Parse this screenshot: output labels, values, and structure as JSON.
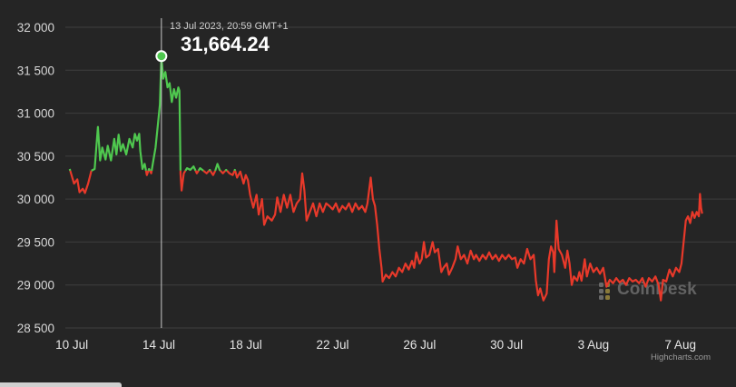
{
  "chart_data": {
    "type": "line",
    "title": "",
    "xlabel": "",
    "ylabel": "",
    "ylim": [
      28500,
      32000
    ],
    "y_ticks": [
      "32 000",
      "31 500",
      "31 000",
      "30 500",
      "30 000",
      "29 500",
      "29 000",
      "28 500"
    ],
    "y_tick_values": [
      32000,
      31500,
      31000,
      30500,
      30000,
      29500,
      29000,
      28500
    ],
    "x_ticks": [
      "10 Jul",
      "14 Jul",
      "18 Jul",
      "22 Jul",
      "26 Jul",
      "30 Jul",
      "3 Aug",
      "7 Aug"
    ],
    "x_tick_days": [
      0,
      4,
      8,
      12,
      16,
      20,
      24,
      28
    ],
    "x_range_days": [
      -0.3,
      30.1
    ],
    "grid": true,
    "colors": {
      "above": "#4fc84f",
      "below": "#e8392a",
      "background": "#252525"
    },
    "baseline": 30330,
    "series": [
      {
        "values": [
          [
            -0.1,
            30350
          ],
          [
            0.1,
            30180
          ],
          [
            0.25,
            30230
          ],
          [
            0.35,
            30080
          ],
          [
            0.5,
            30120
          ],
          [
            0.6,
            30070
          ],
          [
            0.75,
            30180
          ],
          [
            0.9,
            30330
          ],
          [
            1.05,
            30350
          ],
          [
            1.2,
            30840
          ],
          [
            1.3,
            30450
          ],
          [
            1.4,
            30600
          ],
          [
            1.55,
            30460
          ],
          [
            1.65,
            30620
          ],
          [
            1.8,
            30450
          ],
          [
            1.95,
            30700
          ],
          [
            2.05,
            30520
          ],
          [
            2.15,
            30750
          ],
          [
            2.25,
            30560
          ],
          [
            2.35,
            30640
          ],
          [
            2.5,
            30520
          ],
          [
            2.65,
            30700
          ],
          [
            2.8,
            30600
          ],
          [
            2.9,
            30760
          ],
          [
            3.0,
            30680
          ],
          [
            3.1,
            30760
          ],
          [
            3.15,
            30560
          ],
          [
            3.25,
            30350
          ],
          [
            3.35,
            30410
          ],
          [
            3.45,
            30280
          ],
          [
            3.55,
            30350
          ],
          [
            3.65,
            30300
          ],
          [
            3.75,
            30450
          ],
          [
            3.85,
            30600
          ],
          [
            3.95,
            30850
          ],
          [
            4.05,
            31100
          ],
          [
            4.12,
            31664
          ],
          [
            4.2,
            31400
          ],
          [
            4.3,
            31480
          ],
          [
            4.4,
            31300
          ],
          [
            4.5,
            31350
          ],
          [
            4.6,
            31130
          ],
          [
            4.7,
            31280
          ],
          [
            4.8,
            31180
          ],
          [
            4.9,
            31300
          ],
          [
            4.95,
            31260
          ],
          [
            5.0,
            30300
          ],
          [
            5.05,
            30100
          ],
          [
            5.15,
            30300
          ],
          [
            5.3,
            30360
          ],
          [
            5.45,
            30340
          ],
          [
            5.6,
            30380
          ],
          [
            5.75,
            30300
          ],
          [
            5.9,
            30360
          ],
          [
            6.05,
            30330
          ],
          [
            6.2,
            30300
          ],
          [
            6.35,
            30340
          ],
          [
            6.5,
            30280
          ],
          [
            6.6,
            30330
          ],
          [
            6.7,
            30410
          ],
          [
            6.8,
            30340
          ],
          [
            6.95,
            30300
          ],
          [
            7.1,
            30340
          ],
          [
            7.25,
            30300
          ],
          [
            7.4,
            30280
          ],
          [
            7.5,
            30340
          ],
          [
            7.6,
            30250
          ],
          [
            7.75,
            30320
          ],
          [
            7.9,
            30180
          ],
          [
            8.0,
            30280
          ],
          [
            8.1,
            30220
          ],
          [
            8.2,
            30050
          ],
          [
            8.35,
            29900
          ],
          [
            8.5,
            30050
          ],
          [
            8.6,
            29820
          ],
          [
            8.75,
            30000
          ],
          [
            8.85,
            29700
          ],
          [
            9.0,
            29800
          ],
          [
            9.2,
            29750
          ],
          [
            9.35,
            29820
          ],
          [
            9.45,
            30020
          ],
          [
            9.6,
            29850
          ],
          [
            9.75,
            30050
          ],
          [
            9.9,
            29900
          ],
          [
            10.05,
            30050
          ],
          [
            10.2,
            29850
          ],
          [
            10.35,
            29950
          ],
          [
            10.5,
            30000
          ],
          [
            10.6,
            30300
          ],
          [
            10.7,
            30100
          ],
          [
            10.8,
            29750
          ],
          [
            10.95,
            29850
          ],
          [
            11.1,
            29950
          ],
          [
            11.25,
            29800
          ],
          [
            11.4,
            29950
          ],
          [
            11.55,
            29850
          ],
          [
            11.7,
            29950
          ],
          [
            11.85,
            29920
          ],
          [
            12.0,
            29880
          ],
          [
            12.15,
            29950
          ],
          [
            12.3,
            29850
          ],
          [
            12.45,
            29920
          ],
          [
            12.6,
            29880
          ],
          [
            12.75,
            29950
          ],
          [
            12.9,
            29850
          ],
          [
            13.05,
            29950
          ],
          [
            13.2,
            29880
          ],
          [
            13.35,
            29920
          ],
          [
            13.5,
            29850
          ],
          [
            13.6,
            29950
          ],
          [
            13.75,
            30250
          ],
          [
            13.85,
            30000
          ],
          [
            13.95,
            29920
          ],
          [
            14.05,
            29700
          ],
          [
            14.15,
            29420
          ],
          [
            14.25,
            29200
          ],
          [
            14.3,
            29040
          ],
          [
            14.45,
            29120
          ],
          [
            14.6,
            29080
          ],
          [
            14.75,
            29150
          ],
          [
            14.9,
            29100
          ],
          [
            15.05,
            29200
          ],
          [
            15.2,
            29150
          ],
          [
            15.35,
            29250
          ],
          [
            15.5,
            29180
          ],
          [
            15.65,
            29280
          ],
          [
            15.75,
            29200
          ],
          [
            15.85,
            29380
          ],
          [
            16.0,
            29250
          ],
          [
            16.1,
            29300
          ],
          [
            16.2,
            29500
          ],
          [
            16.3,
            29320
          ],
          [
            16.45,
            29350
          ],
          [
            16.6,
            29500
          ],
          [
            16.7,
            29380
          ],
          [
            16.85,
            29420
          ],
          [
            17.0,
            29150
          ],
          [
            17.1,
            29200
          ],
          [
            17.25,
            29250
          ],
          [
            17.35,
            29120
          ],
          [
            17.5,
            29200
          ],
          [
            17.65,
            29300
          ],
          [
            17.75,
            29450
          ],
          [
            17.9,
            29300
          ],
          [
            18.05,
            29350
          ],
          [
            18.2,
            29250
          ],
          [
            18.35,
            29400
          ],
          [
            18.5,
            29300
          ],
          [
            18.6,
            29350
          ],
          [
            18.75,
            29280
          ],
          [
            18.9,
            29350
          ],
          [
            19.05,
            29300
          ],
          [
            19.2,
            29380
          ],
          [
            19.35,
            29300
          ],
          [
            19.5,
            29350
          ],
          [
            19.65,
            29280
          ],
          [
            19.8,
            29350
          ],
          [
            19.95,
            29300
          ],
          [
            20.1,
            29350
          ],
          [
            20.25,
            29300
          ],
          [
            20.4,
            29320
          ],
          [
            20.5,
            29200
          ],
          [
            20.65,
            29300
          ],
          [
            20.8,
            29250
          ],
          [
            20.95,
            29420
          ],
          [
            21.1,
            29300
          ],
          [
            21.25,
            29350
          ],
          [
            21.35,
            29050
          ],
          [
            21.45,
            28880
          ],
          [
            21.55,
            28960
          ],
          [
            21.7,
            28820
          ],
          [
            21.85,
            28900
          ],
          [
            21.95,
            29300
          ],
          [
            22.05,
            29450
          ],
          [
            22.15,
            29380
          ],
          [
            22.2,
            29150
          ],
          [
            22.3,
            29750
          ],
          [
            22.4,
            29420
          ],
          [
            22.55,
            29350
          ],
          [
            22.7,
            29200
          ],
          [
            22.8,
            29400
          ],
          [
            22.9,
            29250
          ],
          [
            23.0,
            29000
          ],
          [
            23.1,
            29100
          ],
          [
            23.25,
            29050
          ],
          [
            23.35,
            29150
          ],
          [
            23.45,
            29050
          ],
          [
            23.6,
            29300
          ],
          [
            23.7,
            29100
          ],
          [
            23.85,
            29250
          ],
          [
            24.0,
            29150
          ],
          [
            24.15,
            29200
          ],
          [
            24.3,
            29130
          ],
          [
            24.45,
            29200
          ],
          [
            24.6,
            28980
          ],
          [
            24.75,
            29060
          ],
          [
            24.9,
            29020
          ],
          [
            25.05,
            29080
          ],
          [
            25.2,
            29030
          ],
          [
            25.35,
            29060
          ],
          [
            25.5,
            29000
          ],
          [
            25.65,
            29080
          ],
          [
            25.8,
            29040
          ],
          [
            25.95,
            29060
          ],
          [
            26.1,
            29020
          ],
          [
            26.25,
            29080
          ],
          [
            26.4,
            28980
          ],
          [
            26.55,
            29080
          ],
          [
            26.7,
            29040
          ],
          [
            26.85,
            29100
          ],
          [
            27.0,
            29000
          ],
          [
            27.1,
            28820
          ],
          [
            27.2,
            29060
          ],
          [
            27.35,
            29040
          ],
          [
            27.5,
            29180
          ],
          [
            27.65,
            29100
          ],
          [
            27.8,
            29200
          ],
          [
            27.95,
            29150
          ],
          [
            28.05,
            29250
          ],
          [
            28.15,
            29500
          ],
          [
            28.25,
            29750
          ],
          [
            28.35,
            29800
          ],
          [
            28.45,
            29720
          ],
          [
            28.55,
            29850
          ],
          [
            28.65,
            29780
          ],
          [
            28.75,
            29850
          ],
          [
            28.85,
            29800
          ],
          [
            28.9,
            30060
          ],
          [
            28.95,
            29900
          ],
          [
            29.0,
            29830
          ]
        ]
      }
    ],
    "tooltip": {
      "date": "13 Jul 2023, 20:59 GMT+1",
      "value": "31,664.24",
      "x_day": 4.12,
      "y": 31664.24
    },
    "watermark": "CoinDesk",
    "credits": "Highcharts.com"
  }
}
